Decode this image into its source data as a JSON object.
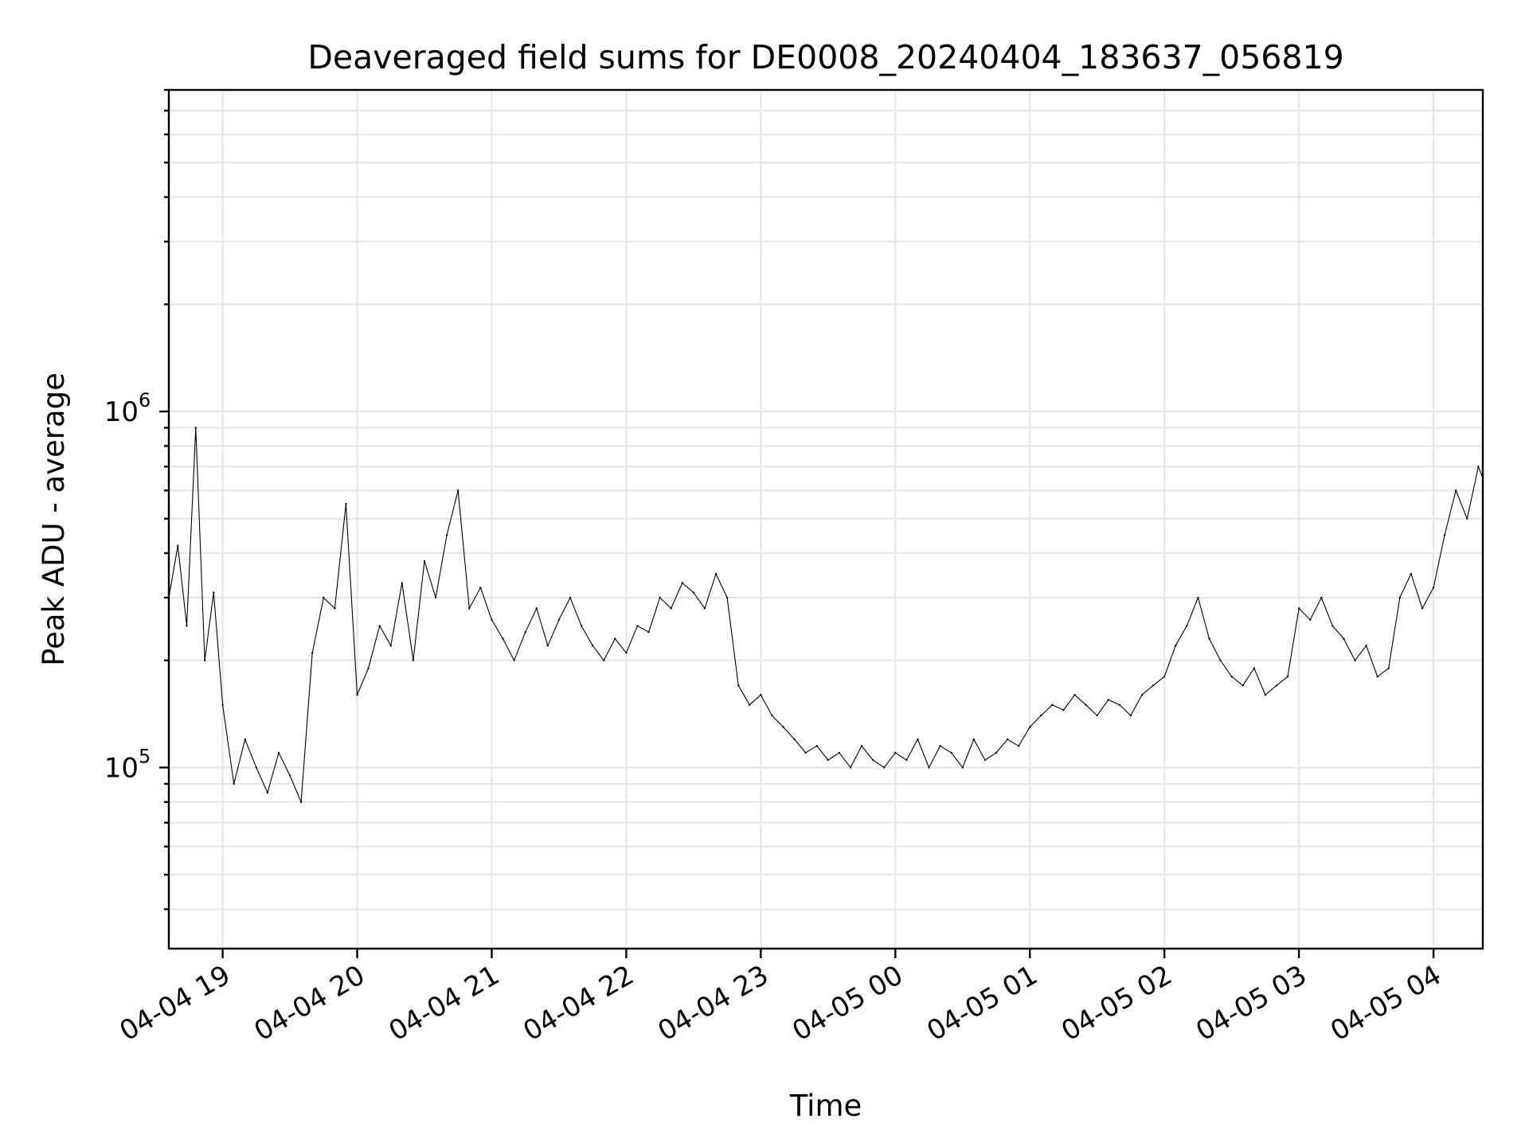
{
  "chart_data": {
    "type": "line",
    "title": "Deaveraged field sums for DE0008_20240404_183637_056819",
    "xlabel": "Time",
    "ylabel": "Peak ADU - average",
    "yscale": "log",
    "grid": true,
    "x_range": [
      "2024-04-04 18:36",
      "2024-04-05 04:22"
    ],
    "ylim": [
      31000,
      8000000
    ],
    "x_ticks": [
      {
        "value": "2024-04-04 19:00",
        "label": "04-04 19"
      },
      {
        "value": "2024-04-04 20:00",
        "label": "04-04 20"
      },
      {
        "value": "2024-04-04 21:00",
        "label": "04-04 21"
      },
      {
        "value": "2024-04-04 22:00",
        "label": "04-04 22"
      },
      {
        "value": "2024-04-04 23:00",
        "label": "04-04 23"
      },
      {
        "value": "2024-04-05 00:00",
        "label": "04-05 00"
      },
      {
        "value": "2024-04-05 01:00",
        "label": "04-05 01"
      },
      {
        "value": "2024-04-05 02:00",
        "label": "04-05 02"
      },
      {
        "value": "2024-04-05 03:00",
        "label": "04-05 03"
      },
      {
        "value": "2024-04-05 04:00",
        "label": "04-05 04"
      }
    ],
    "y_ticks": [
      {
        "value": 100000,
        "base": "10",
        "exp": "5"
      },
      {
        "value": 1000000,
        "base": "10",
        "exp": "6"
      }
    ],
    "series": [
      {
        "color": "#000000",
        "points": [
          [
            "2024-04-04 18:36",
            300000
          ],
          [
            "2024-04-04 18:40",
            420000
          ],
          [
            "2024-04-04 18:44",
            250000
          ],
          [
            "2024-04-04 18:48",
            900000
          ],
          [
            "2024-04-04 18:52",
            200000
          ],
          [
            "2024-04-04 18:56",
            310000
          ],
          [
            "2024-04-04 19:00",
            150000
          ],
          [
            "2024-04-04 19:05",
            90000
          ],
          [
            "2024-04-04 19:10",
            120000
          ],
          [
            "2024-04-04 19:15",
            100000
          ],
          [
            "2024-04-04 19:20",
            85000
          ],
          [
            "2024-04-04 19:25",
            110000
          ],
          [
            "2024-04-04 19:30",
            95000
          ],
          [
            "2024-04-04 19:35",
            80000
          ],
          [
            "2024-04-04 19:40",
            210000
          ],
          [
            "2024-04-04 19:45",
            300000
          ],
          [
            "2024-04-04 19:50",
            280000
          ],
          [
            "2024-04-04 19:55",
            550000
          ],
          [
            "2024-04-04 20:00",
            160000
          ],
          [
            "2024-04-04 20:05",
            190000
          ],
          [
            "2024-04-04 20:10",
            250000
          ],
          [
            "2024-04-04 20:15",
            220000
          ],
          [
            "2024-04-04 20:20",
            330000
          ],
          [
            "2024-04-04 20:25",
            200000
          ],
          [
            "2024-04-04 20:30",
            380000
          ],
          [
            "2024-04-04 20:35",
            300000
          ],
          [
            "2024-04-04 20:40",
            450000
          ],
          [
            "2024-04-04 20:45",
            600000
          ],
          [
            "2024-04-04 20:50",
            280000
          ],
          [
            "2024-04-04 20:55",
            320000
          ],
          [
            "2024-04-04 21:00",
            260000
          ],
          [
            "2024-04-04 21:05",
            230000
          ],
          [
            "2024-04-04 21:10",
            200000
          ],
          [
            "2024-04-04 21:15",
            240000
          ],
          [
            "2024-04-04 21:20",
            280000
          ],
          [
            "2024-04-04 21:25",
            220000
          ],
          [
            "2024-04-04 21:30",
            260000
          ],
          [
            "2024-04-04 21:35",
            300000
          ],
          [
            "2024-04-04 21:40",
            250000
          ],
          [
            "2024-04-04 21:45",
            220000
          ],
          [
            "2024-04-04 21:50",
            200000
          ],
          [
            "2024-04-04 21:55",
            230000
          ],
          [
            "2024-04-04 22:00",
            210000
          ],
          [
            "2024-04-04 22:05",
            250000
          ],
          [
            "2024-04-04 22:10",
            240000
          ],
          [
            "2024-04-04 22:15",
            300000
          ],
          [
            "2024-04-04 22:20",
            280000
          ],
          [
            "2024-04-04 22:25",
            330000
          ],
          [
            "2024-04-04 22:30",
            310000
          ],
          [
            "2024-04-04 22:35",
            280000
          ],
          [
            "2024-04-04 22:40",
            350000
          ],
          [
            "2024-04-04 22:45",
            300000
          ],
          [
            "2024-04-04 22:50",
            170000
          ],
          [
            "2024-04-04 22:55",
            150000
          ],
          [
            "2024-04-04 23:00",
            160000
          ],
          [
            "2024-04-04 23:05",
            140000
          ],
          [
            "2024-04-04 23:10",
            130000
          ],
          [
            "2024-04-04 23:15",
            120000
          ],
          [
            "2024-04-04 23:20",
            110000
          ],
          [
            "2024-04-04 23:25",
            115000
          ],
          [
            "2024-04-04 23:30",
            105000
          ],
          [
            "2024-04-04 23:35",
            110000
          ],
          [
            "2024-04-04 23:40",
            100000
          ],
          [
            "2024-04-04 23:45",
            115000
          ],
          [
            "2024-04-04 23:50",
            105000
          ],
          [
            "2024-04-04 23:55",
            100000
          ],
          [
            "2024-04-05 00:00",
            110000
          ],
          [
            "2024-04-05 00:05",
            105000
          ],
          [
            "2024-04-05 00:10",
            120000
          ],
          [
            "2024-04-05 00:15",
            100000
          ],
          [
            "2024-04-05 00:20",
            115000
          ],
          [
            "2024-04-05 00:25",
            110000
          ],
          [
            "2024-04-05 00:30",
            100000
          ],
          [
            "2024-04-05 00:35",
            120000
          ],
          [
            "2024-04-05 00:40",
            105000
          ],
          [
            "2024-04-05 00:45",
            110000
          ],
          [
            "2024-04-05 00:50",
            120000
          ],
          [
            "2024-04-05 00:55",
            115000
          ],
          [
            "2024-04-05 01:00",
            130000
          ],
          [
            "2024-04-05 01:05",
            140000
          ],
          [
            "2024-04-05 01:10",
            150000
          ],
          [
            "2024-04-05 01:15",
            145000
          ],
          [
            "2024-04-05 01:20",
            160000
          ],
          [
            "2024-04-05 01:25",
            150000
          ],
          [
            "2024-04-05 01:30",
            140000
          ],
          [
            "2024-04-05 01:35",
            155000
          ],
          [
            "2024-04-05 01:40",
            150000
          ],
          [
            "2024-04-05 01:45",
            140000
          ],
          [
            "2024-04-05 01:50",
            160000
          ],
          [
            "2024-04-05 01:55",
            170000
          ],
          [
            "2024-04-05 02:00",
            180000
          ],
          [
            "2024-04-05 02:05",
            220000
          ],
          [
            "2024-04-05 02:10",
            250000
          ],
          [
            "2024-04-05 02:15",
            300000
          ],
          [
            "2024-04-05 02:20",
            230000
          ],
          [
            "2024-04-05 02:25",
            200000
          ],
          [
            "2024-04-05 02:30",
            180000
          ],
          [
            "2024-04-05 02:35",
            170000
          ],
          [
            "2024-04-05 02:40",
            190000
          ],
          [
            "2024-04-05 02:45",
            160000
          ],
          [
            "2024-04-05 02:50",
            170000
          ],
          [
            "2024-04-05 02:55",
            180000
          ],
          [
            "2024-04-05 03:00",
            280000
          ],
          [
            "2024-04-05 03:05",
            260000
          ],
          [
            "2024-04-05 03:10",
            300000
          ],
          [
            "2024-04-05 03:15",
            250000
          ],
          [
            "2024-04-05 03:20",
            230000
          ],
          [
            "2024-04-05 03:25",
            200000
          ],
          [
            "2024-04-05 03:30",
            220000
          ],
          [
            "2024-04-05 03:35",
            180000
          ],
          [
            "2024-04-05 03:40",
            190000
          ],
          [
            "2024-04-05 03:45",
            300000
          ],
          [
            "2024-04-05 03:50",
            350000
          ],
          [
            "2024-04-05 03:55",
            280000
          ],
          [
            "2024-04-05 04:00",
            320000
          ],
          [
            "2024-04-05 04:05",
            450000
          ],
          [
            "2024-04-05 04:10",
            600000
          ],
          [
            "2024-04-05 04:15",
            500000
          ],
          [
            "2024-04-05 04:20",
            700000
          ],
          [
            "2024-04-05 04:22",
            650000
          ]
        ]
      }
    ]
  }
}
